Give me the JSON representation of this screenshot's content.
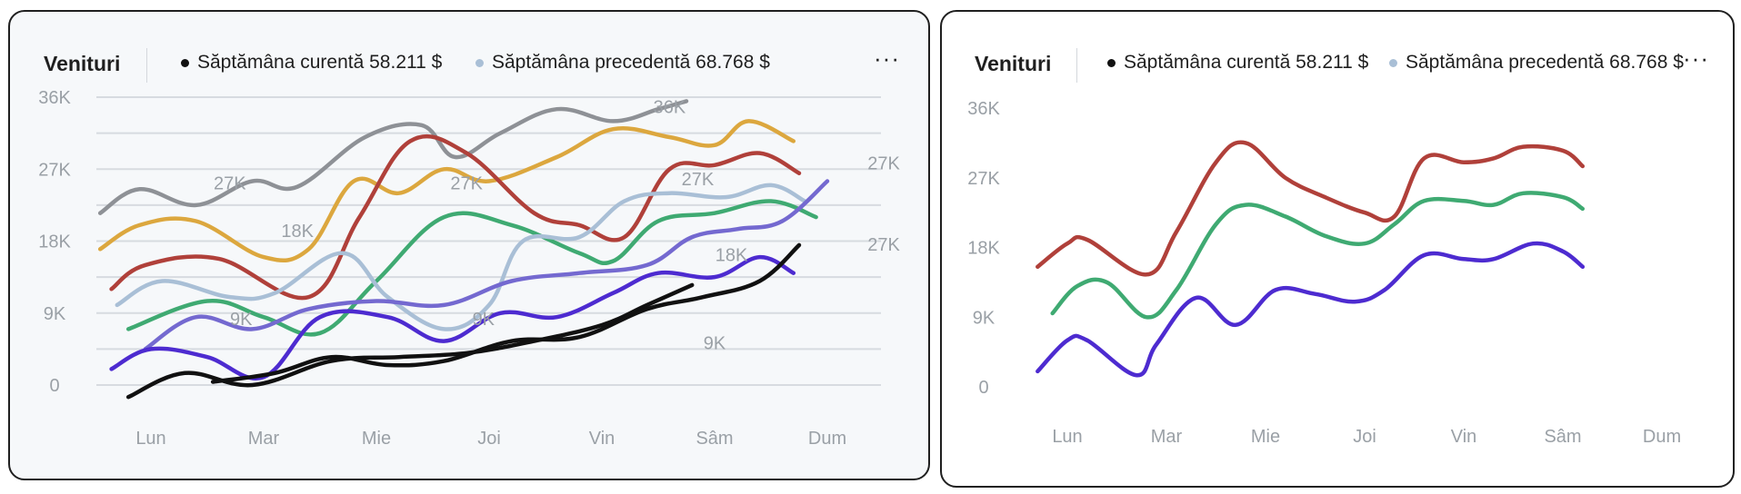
{
  "left_panel": {
    "title": "Venituri",
    "legend": [
      {
        "label": "Săptămâna curentă 58.211 $",
        "color": "#111111"
      },
      {
        "label": "Săptămâna precedentă 68.768 $",
        "color": "#a9bfd6"
      }
    ],
    "more_label": "···"
  },
  "right_panel": {
    "title": "Venituri",
    "legend": [
      {
        "label": "Săptămâna curentă 58.211 $",
        "color": "#111111"
      },
      {
        "label": "Săptămâna precedentă 68.768 $",
        "color": "#a9bfd6"
      }
    ],
    "more_label": "···"
  },
  "chart_data": [
    {
      "type": "line",
      "title": "Venituri",
      "categories": [
        "Lun",
        "Mar",
        "Mie",
        "Joi",
        "Vin",
        "Sâm",
        "Dum"
      ],
      "ylim": [
        0,
        36000
      ],
      "yticks": [
        "36K",
        "27K",
        "18K",
        "9K",
        "0"
      ],
      "grid": true,
      "annotations": [
        {
          "text": "27K",
          "x": 0.7,
          "y": 24500
        },
        {
          "text": "18K",
          "x": 1.3,
          "y": 18500
        },
        {
          "text": "27K",
          "x": 2.8,
          "y": 24500
        },
        {
          "text": "9K",
          "x": 0.8,
          "y": 7500
        },
        {
          "text": "9K",
          "x": 2.95,
          "y": 7500
        },
        {
          "text": "36K",
          "x": 4.6,
          "y": 34000
        },
        {
          "text": "27K",
          "x": 4.85,
          "y": 25000
        },
        {
          "text": "18K",
          "x": 5.15,
          "y": 15500
        },
        {
          "text": "9K",
          "x": 5.0,
          "y": 4500
        },
        {
          "text": "27K",
          "x": 6.5,
          "y": 27000
        },
        {
          "text": "27K",
          "x": 6.5,
          "y": 16800
        }
      ],
      "series": [
        {
          "color": "#8e9196",
          "x": [
            -0.45,
            -0.1,
            0.4,
            0.9,
            1.3,
            1.9,
            2.4,
            2.7,
            3.1,
            3.6,
            4.1,
            4.5,
            4.75
          ],
          "values": [
            21500,
            24500,
            22500,
            25500,
            24800,
            31000,
            32500,
            28500,
            31500,
            34500,
            33000,
            34500,
            35500
          ]
        },
        {
          "color": "#dca73e",
          "x": [
            -0.45,
            -0.1,
            0.4,
            1.0,
            1.4,
            1.8,
            2.2,
            2.6,
            3.0,
            3.6,
            4.1,
            4.6,
            5.0,
            5.3,
            5.7
          ],
          "values": [
            17000,
            20000,
            20500,
            16000,
            17000,
            25500,
            24000,
            27000,
            25500,
            28500,
            32000,
            31000,
            30000,
            33000,
            30500
          ]
        },
        {
          "color": "#b0403a",
          "x": [
            -0.35,
            -0.05,
            0.6,
            1.4,
            1.85,
            2.3,
            2.8,
            3.4,
            3.8,
            4.2,
            4.6,
            5.0,
            5.4,
            5.75
          ],
          "values": [
            12000,
            15000,
            15800,
            11000,
            21000,
            30500,
            29000,
            21500,
            20000,
            18500,
            27000,
            27500,
            29000,
            26500
          ]
        },
        {
          "color": "#3faa72",
          "x": [
            -0.2,
            0.5,
            1.0,
            1.5,
            2.0,
            2.6,
            3.2,
            3.8,
            4.1,
            4.5,
            5.0,
            5.5,
            5.9
          ],
          "values": [
            7000,
            10500,
            8500,
            6500,
            13000,
            21000,
            20000,
            16500,
            15500,
            20500,
            21500,
            23000,
            21000
          ]
        },
        {
          "color": "#a9bfd6",
          "x": [
            -0.3,
            0.1,
            0.7,
            1.1,
            1.7,
            2.1,
            2.6,
            3.0,
            3.3,
            3.8,
            4.2,
            4.6,
            5.1,
            5.5,
            5.8
          ],
          "values": [
            10000,
            13000,
            11000,
            11500,
            16500,
            11000,
            7000,
            10000,
            18000,
            18500,
            23000,
            24000,
            23500,
            25000,
            23000
          ]
        },
        {
          "color": "#7469d0",
          "x": [
            -0.05,
            0.4,
            0.9,
            1.4,
            2.0,
            2.6,
            3.2,
            3.8,
            4.4,
            4.8,
            5.2,
            5.6,
            6.0
          ],
          "values": [
            4500,
            8500,
            7000,
            9500,
            10500,
            10000,
            13000,
            14000,
            15000,
            18500,
            19500,
            20500,
            25500
          ]
        },
        {
          "color": "#4d2bd0",
          "x": [
            -0.35,
            0.0,
            0.5,
            1.0,
            1.5,
            2.1,
            2.6,
            3.1,
            3.6,
            4.1,
            4.5,
            5.0,
            5.4,
            5.7
          ],
          "values": [
            2000,
            4500,
            3500,
            1000,
            8500,
            8500,
            5500,
            9000,
            8500,
            11500,
            14000,
            13500,
            16000,
            14000
          ]
        },
        {
          "color": "#111111",
          "x": [
            -0.2,
            0.3,
            0.9,
            1.6,
            2.2,
            2.8,
            3.4,
            4.0,
            4.4,
            4.8
          ],
          "values": [
            -1500,
            1500,
            0,
            3000,
            3500,
            4000,
            5500,
            7500,
            10000,
            12500
          ]
        },
        {
          "color": "#111111",
          "x": [
            0.55,
            1.1,
            1.6,
            2.1,
            2.6,
            3.2,
            3.8,
            4.4,
            4.9,
            5.4,
            5.75
          ],
          "values": [
            400,
            1500,
            3500,
            2500,
            3000,
            5500,
            6000,
            9500,
            11000,
            13000,
            17500
          ]
        }
      ]
    },
    {
      "type": "line",
      "title": "Venituri",
      "categories": [
        "Lun",
        "Mar",
        "Mie",
        "Joi",
        "Vin",
        "Sâm",
        "Dum"
      ],
      "ylim": [
        0,
        36000
      ],
      "yticks": [
        "36K",
        "27K",
        "18K",
        "9K",
        "0"
      ],
      "grid": false,
      "series": [
        {
          "color": "#b0403a",
          "x": [
            -0.3,
            0.0,
            0.2,
            0.8,
            1.1,
            1.5,
            1.8,
            2.2,
            2.6,
            3.0,
            3.3,
            3.6,
            4.0,
            4.3,
            4.6,
            5.0,
            5.2
          ],
          "values": [
            15500,
            18500,
            19000,
            14500,
            20000,
            29000,
            31500,
            27000,
            24500,
            22500,
            22000,
            29500,
            29000,
            29500,
            31000,
            30500,
            28500
          ]
        },
        {
          "color": "#3faa72",
          "x": [
            -0.15,
            0.1,
            0.4,
            0.8,
            1.1,
            1.5,
            1.8,
            2.2,
            2.6,
            3.0,
            3.3,
            3.6,
            4.0,
            4.3,
            4.6,
            5.0,
            5.2
          ],
          "values": [
            9500,
            13000,
            13500,
            9000,
            12500,
            21000,
            23500,
            22000,
            19500,
            18500,
            21000,
            24000,
            24000,
            23500,
            25000,
            24500,
            23000
          ]
        },
        {
          "color": "#4d2bd0",
          "x": [
            -0.3,
            0.0,
            0.2,
            0.7,
            0.9,
            1.3,
            1.7,
            2.1,
            2.5,
            2.9,
            3.2,
            3.6,
            4.0,
            4.3,
            4.7,
            5.0,
            5.2
          ],
          "values": [
            2000,
            6000,
            6000,
            1500,
            5500,
            11500,
            8000,
            12500,
            12000,
            11000,
            12500,
            17000,
            16500,
            16500,
            18500,
            17500,
            15500
          ]
        }
      ]
    }
  ]
}
